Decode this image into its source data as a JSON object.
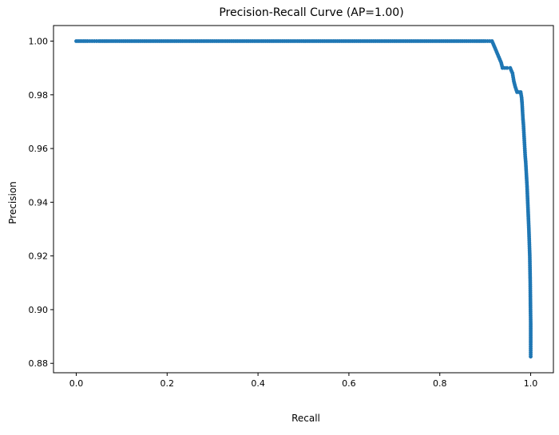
{
  "chart_data": {
    "type": "line",
    "title": "Precision-Recall Curve (AP=1.00)",
    "xlabel": "Recall",
    "ylabel": "Precision",
    "xlim": [
      -0.05,
      1.05
    ],
    "ylim": [
      0.8765,
      1.0058
    ],
    "x_ticks": [
      0.0,
      0.2,
      0.4,
      0.6,
      0.8,
      1.0
    ],
    "x_tick_labels": [
      "0.0",
      "0.2",
      "0.4",
      "0.6",
      "0.8",
      "1.0"
    ],
    "y_ticks": [
      0.88,
      0.9,
      0.92,
      0.94,
      0.96,
      0.98,
      1.0
    ],
    "y_tick_labels": [
      "0.88",
      "0.90",
      "0.92",
      "0.94",
      "0.96",
      "0.98",
      "1.00"
    ],
    "grid": false,
    "legend": "none",
    "marker": "circle",
    "series_color": "#1f77b4",
    "series": [
      {
        "x": [
          0.0,
          0.025,
          0.035,
          0.05,
          0.07,
          0.1,
          0.15,
          0.2,
          0.25,
          0.3,
          0.35,
          0.4,
          0.45,
          0.5,
          0.55,
          0.6,
          0.65,
          0.7,
          0.75,
          0.8,
          0.85,
          0.88,
          0.9,
          0.915,
          0.92,
          0.925,
          0.93,
          0.935,
          0.938,
          0.943,
          0.948,
          0.955,
          0.96,
          0.963,
          0.966,
          0.97,
          0.974,
          0.978,
          0.98,
          0.981,
          0.982,
          0.983,
          0.984,
          0.985,
          0.986,
          0.987,
          0.988,
          0.989,
          0.99,
          0.991,
          0.992,
          0.993,
          0.994,
          0.995,
          0.996,
          0.997,
          0.998,
          0.9985,
          0.999,
          0.9993,
          0.9996,
          1.0,
          1.0,
          1.0,
          1.0,
          1.0
        ],
        "y": [
          1.0,
          1.0,
          1.0,
          1.0,
          1.0,
          1.0,
          1.0,
          1.0,
          1.0,
          1.0,
          1.0,
          1.0,
          1.0,
          1.0,
          1.0,
          1.0,
          1.0,
          1.0,
          1.0,
          1.0,
          1.0,
          1.0,
          1.0,
          1.0,
          0.998,
          0.996,
          0.994,
          0.992,
          0.99,
          0.99,
          0.99,
          0.99,
          0.988,
          0.985,
          0.983,
          0.981,
          0.981,
          0.981,
          0.979,
          0.977,
          0.974,
          0.971,
          0.969,
          0.966,
          0.963,
          0.96,
          0.957,
          0.955,
          0.952,
          0.949,
          0.946,
          0.942,
          0.938,
          0.934,
          0.93,
          0.925,
          0.92,
          0.915,
          0.91,
          0.905,
          0.9,
          0.895,
          0.891,
          0.887,
          0.884,
          0.8825
        ]
      }
    ]
  }
}
